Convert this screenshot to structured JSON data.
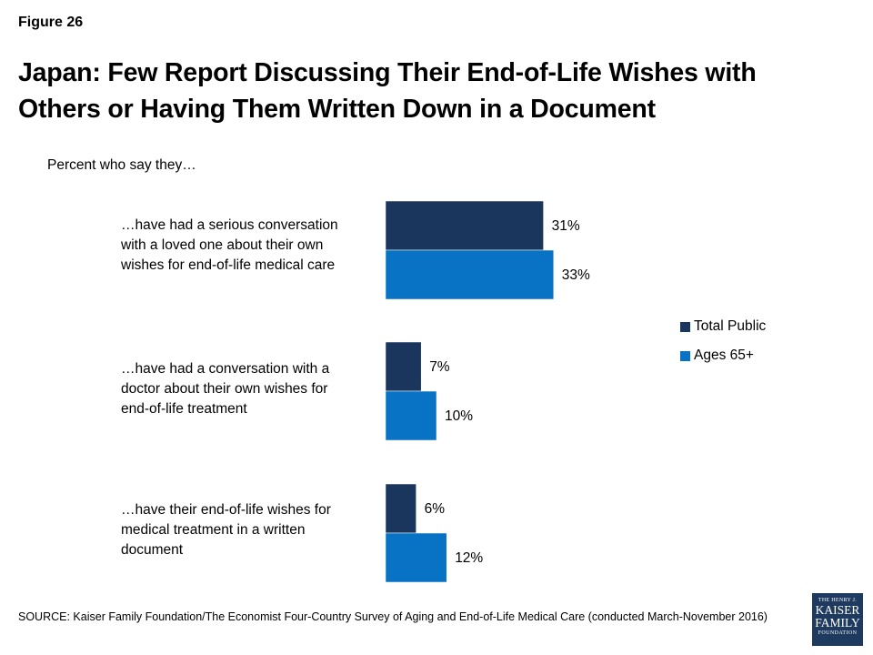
{
  "figure_label": "Figure 26",
  "title": "Japan: Few Report Discussing Their End-of-Life Wishes  with Others or Having Them Written Down in a Document",
  "subtitle": "Percent who say they…",
  "source": "SOURCE: Kaiser Family Foundation/The Economist Four-Country Survey of Aging and End-of-Life Medical Care (conducted March-November 2016)",
  "logo": {
    "line1": "THE HENRY J.",
    "line2": "KAISER",
    "line3": "FAMILY",
    "line4": "FOUNDATION"
  },
  "colors": {
    "total_public": "#1b365d",
    "ages_65": "#0872c4"
  },
  "chart_data": {
    "type": "bar",
    "orientation": "horizontal",
    "categories": [
      "…have had a serious conversation with a loved one about their own wishes for end-of-life medical care",
      "…have had a conversation with a doctor about their own wishes for end-of-life treatment",
      "…have their end-of-life wishes for medical treatment in a written document"
    ],
    "category_lines": [
      [
        "…have had a serious conversation",
        "with a loved one about their own",
        "wishes for end-of-life medical care"
      ],
      [
        "…have had a conversation with a",
        "doctor about their own wishes for",
        "end-of-life treatment"
      ],
      [
        "…have their end-of-life wishes for",
        "medical treatment in a written",
        "document"
      ]
    ],
    "series": [
      {
        "name": "Total Public",
        "values": [
          31,
          7,
          6
        ],
        "labels": [
          "31%",
          "7%",
          "6%"
        ]
      },
      {
        "name": "Ages 65+",
        "values": [
          33,
          10,
          12
        ],
        "labels": [
          "33%",
          "10%",
          "12%"
        ]
      }
    ],
    "legend_position": "right",
    "grid": false
  }
}
